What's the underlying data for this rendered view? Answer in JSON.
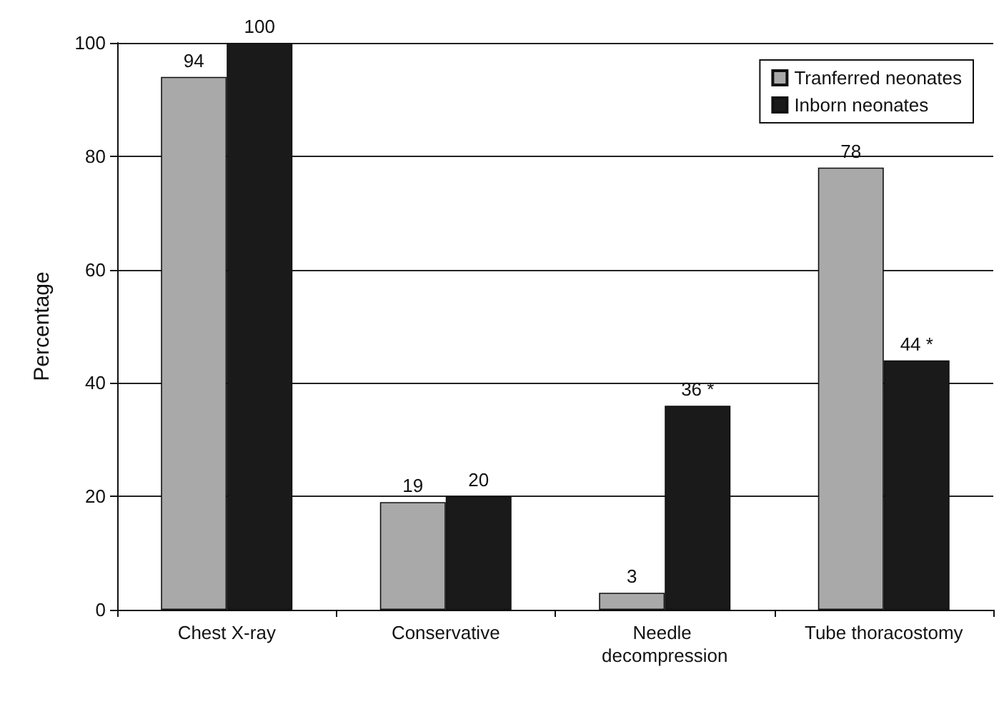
{
  "chart_data": {
    "type": "bar",
    "ylabel": "Percentage",
    "categories": [
      "Chest X-ray",
      "Conservative",
      "Needle decompression",
      "Tube thoracostomy"
    ],
    "series": [
      {
        "name": "Tranferred neonates",
        "color": "#a9a9a9",
        "values": [
          94,
          19,
          3,
          78
        ],
        "value_labels": [
          "94",
          "19",
          "3",
          "78"
        ]
      },
      {
        "name": "Inborn neonates",
        "color": "#1a1a1a",
        "values": [
          100,
          20,
          36,
          44
        ],
        "value_labels": [
          "100",
          "20",
          "36 *",
          "44 *"
        ]
      }
    ],
    "ylim": [
      0,
      100
    ],
    "yticks": [
      0,
      20,
      40,
      60,
      80,
      100
    ],
    "grid": "y",
    "legend": "top right"
  }
}
